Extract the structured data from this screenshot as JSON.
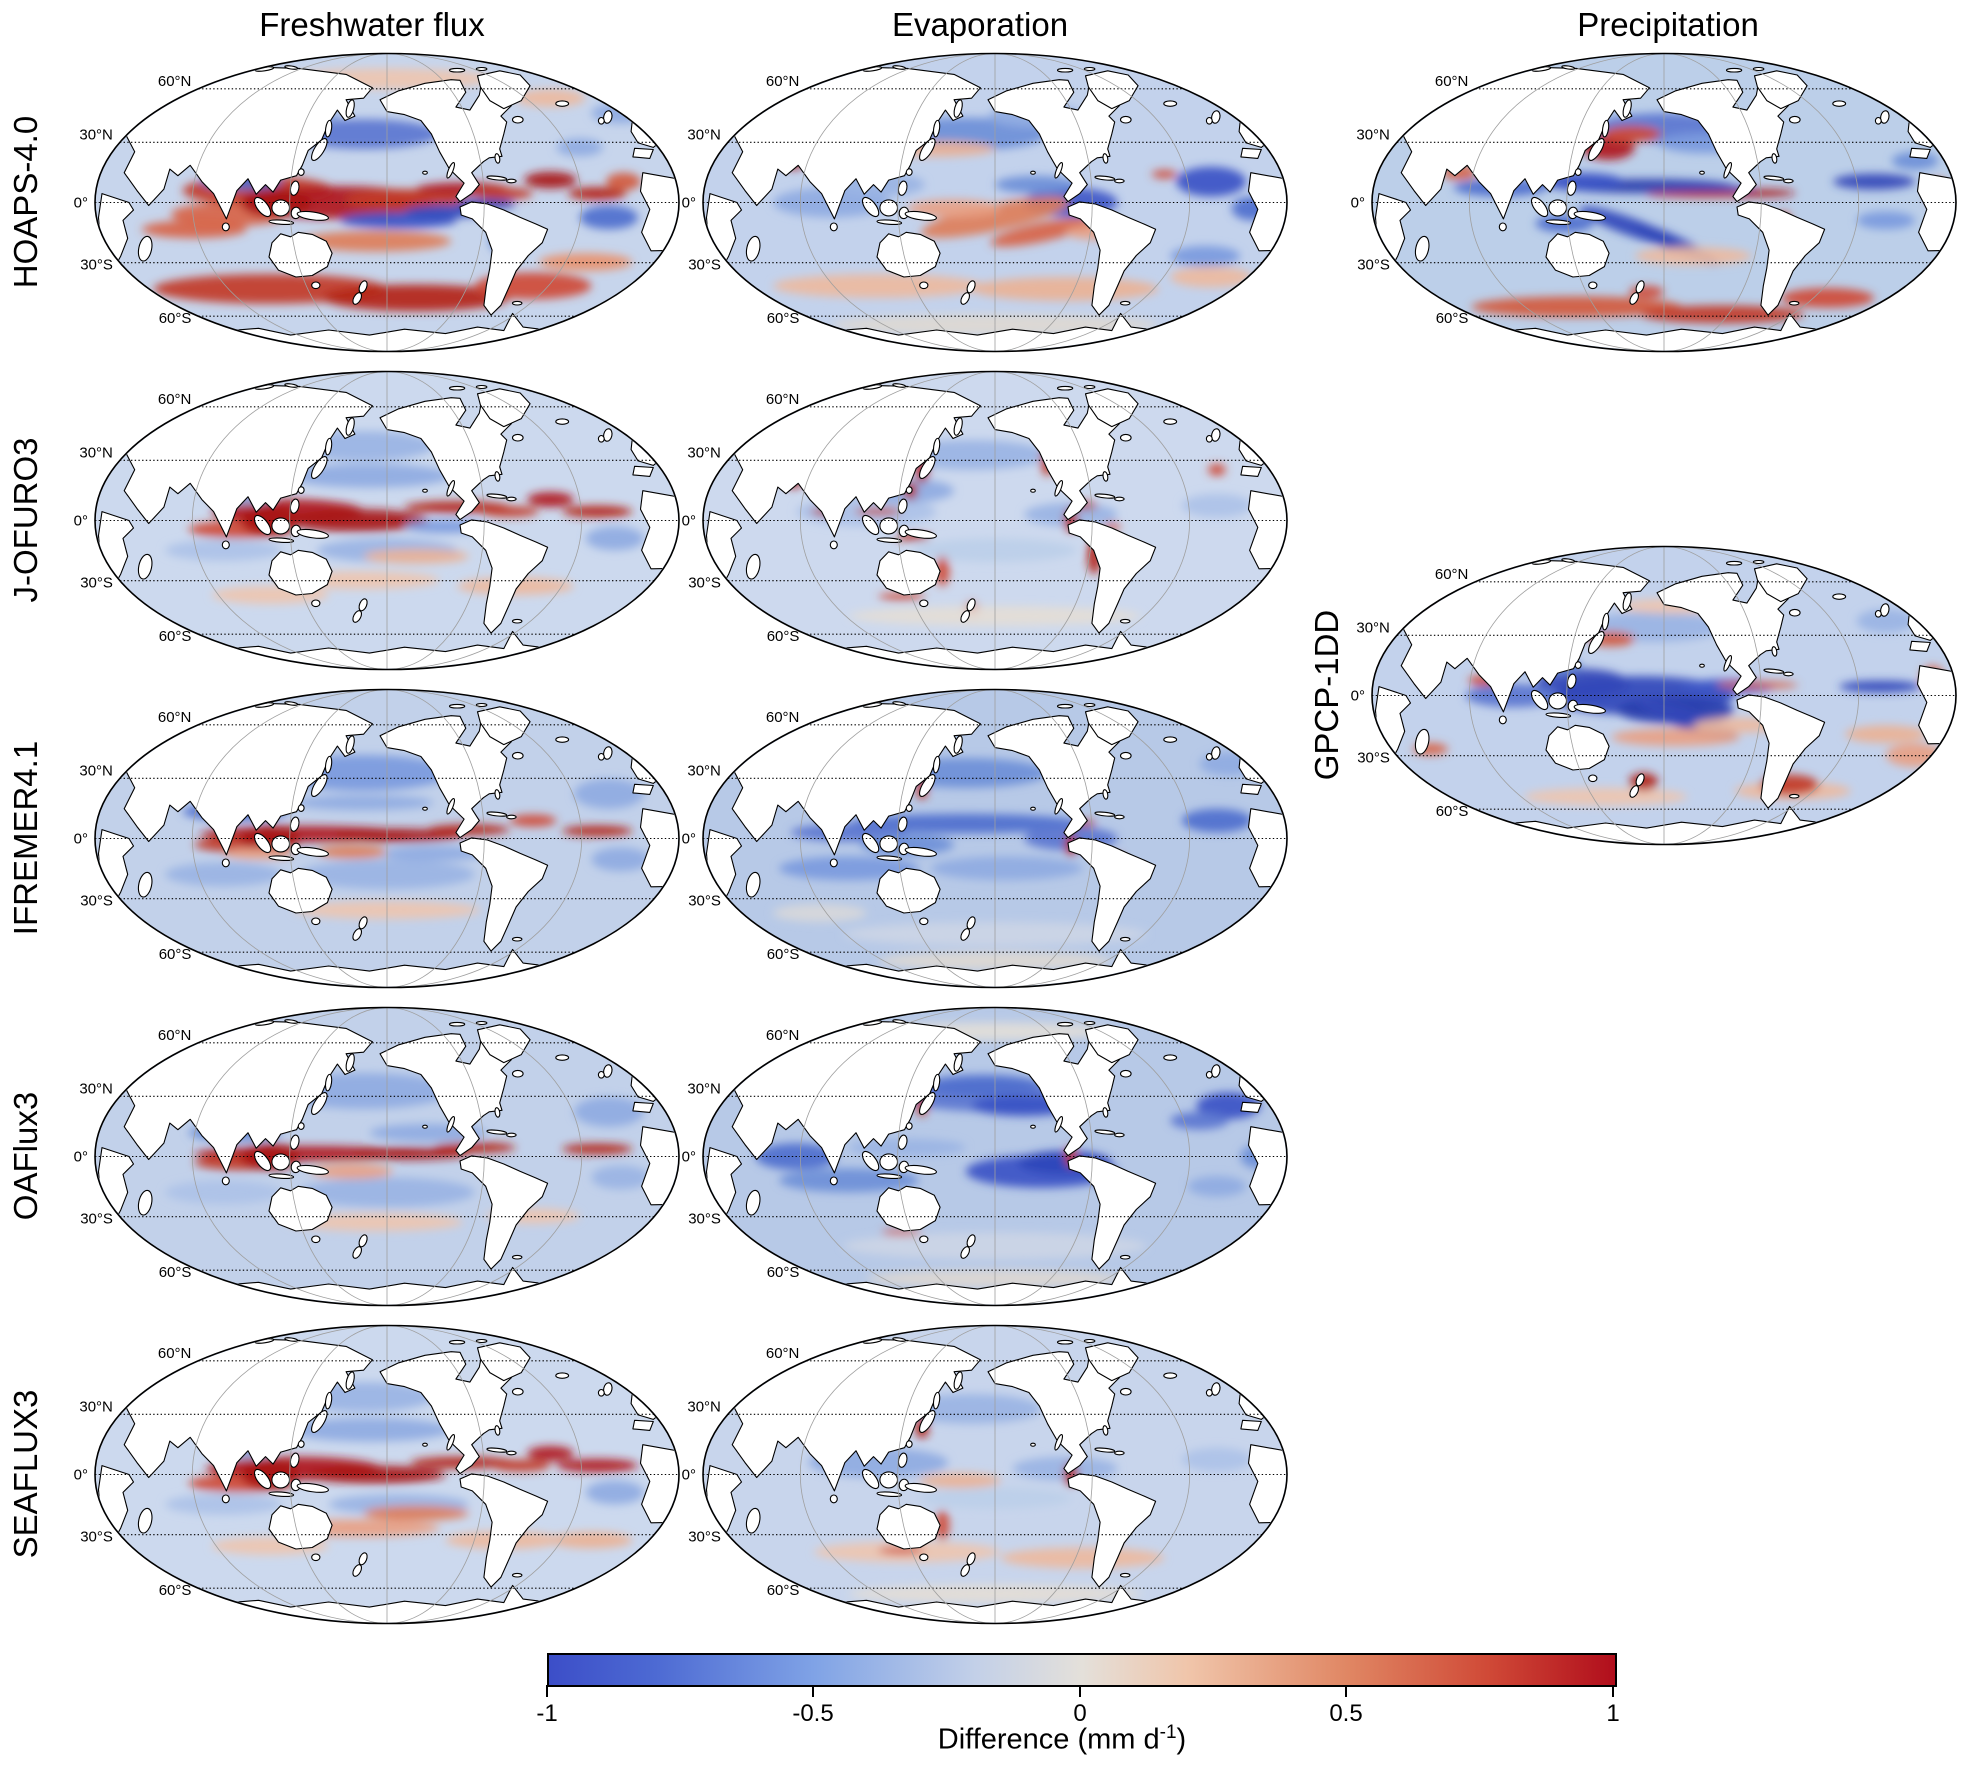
{
  "figure": {
    "column_titles": [
      "Freshwater flux",
      "Evaporation",
      "Precipitation"
    ],
    "row_labels": [
      "HOAPS-4.0",
      "J-OFURO3",
      "IFREMER4.1",
      "OAFlux3",
      "SEAFLUX3"
    ],
    "gpcp_label": "GPCP-1DD",
    "latitude_labels": [
      "60°N",
      "30°N",
      "0°",
      "30°S",
      "60°S"
    ]
  },
  "chart_data": {
    "type": "heatmap",
    "projection": "Mollweide, Pacific-centered world maps with dotted latitude gridlines and gray meridians",
    "variables": [
      "Freshwater flux",
      "Evaporation",
      "Precipitation"
    ],
    "datasets": [
      "HOAPS-4.0",
      "J-OFURO3",
      "IFREMER4.1",
      "OAFlux3",
      "SEAFLUX3",
      "GPCP-1DD"
    ],
    "value_units": "mm d⁻¹",
    "value_range": [
      -1,
      1
    ],
    "colorbar": {
      "label": "Difference (mm d⁻¹)",
      "label_parts": {
        "prefix": "Difference (mm d",
        "sup": "-1",
        "suffix": ")"
      },
      "ticks": [
        -1,
        -0.5,
        0,
        0.5,
        1
      ],
      "tick_labels": [
        "-1",
        "-0.5",
        "0",
        "0.5",
        "1"
      ],
      "orientation": "horizontal",
      "gradient_stops": [
        {
          "pos": 0.0,
          "color": "#3c4ec8"
        },
        {
          "pos": 0.1,
          "color": "#4d6ad3"
        },
        {
          "pos": 0.25,
          "color": "#80a3e6"
        },
        {
          "pos": 0.4,
          "color": "#c3d0e8"
        },
        {
          "pos": 0.5,
          "color": "#e4e0da"
        },
        {
          "pos": 0.6,
          "color": "#f0c5aa"
        },
        {
          "pos": 0.75,
          "color": "#e08663"
        },
        {
          "pos": 0.88,
          "color": "#d04a37"
        },
        {
          "pos": 1.0,
          "color": "#b10e1c"
        }
      ]
    },
    "panels": [
      {
        "dataset": "HOAPS-4.0",
        "variable": "Freshwater flux",
        "grid": {
          "row": 0,
          "col": 0
        },
        "pattern": "fwf_hoaps",
        "description": "Strong positive (red) differences along the equatorial Pacific, Caribbean/Atlantic ITCZ and Southern Ocean; negative (blue) in the North Pacific, subtropical South Pacific and Atlantic."
      },
      {
        "dataset": "HOAPS-4.0",
        "variable": "Evaporation",
        "grid": {
          "row": 0,
          "col": 1
        },
        "pattern": "evap_hoaps",
        "description": "Mostly weak negative (blue) differences; salmon positive band across the central South Pacific and pale positive ring in southern mid-latitudes."
      },
      {
        "dataset": "HOAPS-4.0",
        "variable": "Precipitation",
        "grid": {
          "row": 0,
          "col": 2
        },
        "pattern": "precip_hoaps",
        "description": "Mostly negative (blue) with dark blue tropical bands; positive patches in the Kuroshio region, a narrow ITCZ line and the Southern Ocean near 60°S."
      },
      {
        "dataset": "J-OFURO3",
        "variable": "Freshwater flux",
        "grid": {
          "row": 1,
          "col": 0
        },
        "pattern": "fwf_jofuro",
        "description": "Intense positive (dark red) equatorial band, especially over the warm pool; blue flanking bands north and south; pale positive streaks in southern mid-latitudes."
      },
      {
        "dataset": "J-OFURO3",
        "variable": "Evaporation",
        "grid": {
          "row": 1,
          "col": 1
        },
        "pattern": "evap_jofuro",
        "description": "Weak negative differences over the open ocean with strong positive (red) rims hugging nearly all coastlines."
      },
      {
        "dataset": "GPCP-1DD",
        "variable": "Precipitation",
        "grid": {
          "row": 1.5,
          "col": 2
        },
        "pattern": "precip_gpcp",
        "description": "Large dark-blue negative region over the equatorial west/central Pacific and Atlantic ITCZ; positive streaks in the subtropical South Pacific, near New Zealand, Patagonia and a dark red spot near the Caspian region."
      },
      {
        "dataset": "IFREMER4.1",
        "variable": "Freshwater flux",
        "grid": {
          "row": 2,
          "col": 0
        },
        "pattern": "fwf_ifremer",
        "description": "Narrow intense positive equatorial band across Pacific and Atlantic; widespread moderate negative (blue) elsewhere, dark blue Arabian Sea/Bay of Bengal."
      },
      {
        "dataset": "IFREMER4.1",
        "variable": "Evaporation",
        "grid": {
          "row": 2,
          "col": 1
        },
        "pattern": "evap_ifremer",
        "description": "Broad moderate-to-dark negative (blue) differences, strongest in tropical bands and the North Pacific; pale gray near the Southern Ocean."
      },
      {
        "dataset": "OAFlux3",
        "variable": "Freshwater flux",
        "grid": {
          "row": 3,
          "col": 0
        },
        "pattern": "fwf_oaflux",
        "description": "Narrow intense positive equatorial band; moderate negative differences over most other ocean basins with pale positive streaks south of 30°S."
      },
      {
        "dataset": "OAFlux3",
        "variable": "Evaporation",
        "grid": {
          "row": 3,
          "col": 1
        },
        "pattern": "evap_oaflux",
        "description": "Widespread negative (blue) differences with dark blue cores in the central North Pacific, southeast Pacific, North Atlantic subtropics and western Indian Ocean."
      },
      {
        "dataset": "SEAFLUX3",
        "variable": "Freshwater flux",
        "grid": {
          "row": 4,
          "col": 0
        },
        "pattern": "fwf_seaflux",
        "description": "Strong positive equatorial band and Atlantic ITCZ; blue flanks; noticeable warm streaks between 30°S and 50°S."
      },
      {
        "dataset": "SEAFLUX3",
        "variable": "Evaporation",
        "grid": {
          "row": 4,
          "col": 1
        },
        "pattern": "evap_seaflux",
        "description": "Weak negative differences overall with pale positive band around 40–60°S and thin red coastal rims."
      }
    ]
  }
}
